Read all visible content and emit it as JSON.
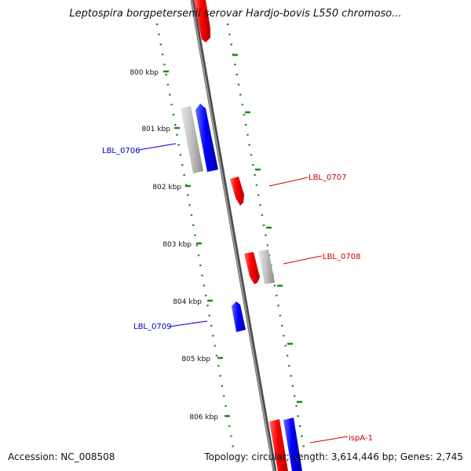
{
  "title": "Leptospira borgpetersenii serovar Hardjo-bovis L550 chromoso...",
  "accession": "Accession: NC_008508",
  "summary": "Topology: circular; Length: 3,614,446 bp; Genes: 2,745",
  "colors": {
    "backbone": "#777777",
    "tick": "#1a8a1a",
    "gene_forward": "#e00000",
    "gene_reverse": "#0000ee",
    "gene_other": "#b0b0b0"
  },
  "ruler": [
    "800 kbp",
    "801 kbp",
    "802 kbp",
    "803 kbp",
    "804 kbp",
    "805 kbp",
    "806 kbp"
  ],
  "gene_labels": [
    {
      "name": "LBL_0706",
      "strand": "reverse"
    },
    {
      "name": "LBL_0707",
      "strand": "forward"
    },
    {
      "name": "LBL_0708",
      "strand": "forward"
    },
    {
      "name": "LBL_0709",
      "strand": "reverse"
    },
    {
      "name": "ispA-1",
      "strand": "forward"
    }
  ]
}
